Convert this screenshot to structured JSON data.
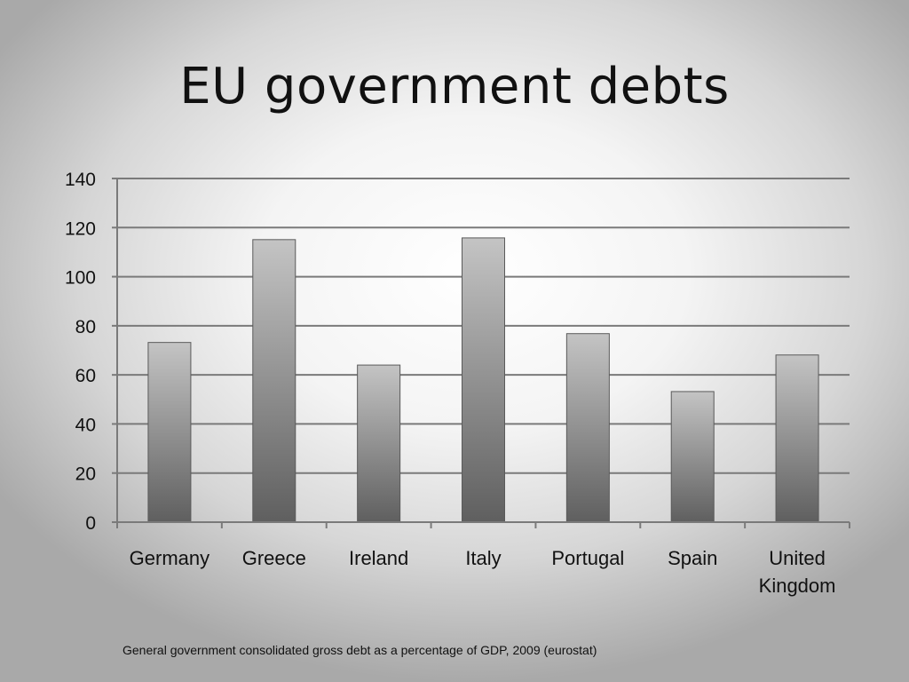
{
  "slide": {
    "title": "EU government debts",
    "caption": "General government consolidated gross debt as a percentage of GDP, 2009 (eurostat)"
  },
  "chart_data": {
    "type": "bar",
    "title": "",
    "xlabel": "",
    "ylabel": "",
    "categories": [
      "Germany",
      "Greece",
      "Ireland",
      "Italy",
      "Portugal",
      "Spain",
      "United Kingdom"
    ],
    "category_lines": [
      [
        "Germany"
      ],
      [
        "Greece"
      ],
      [
        "Ireland"
      ],
      [
        "Italy"
      ],
      [
        "Portugal"
      ],
      [
        "Spain"
      ],
      [
        "United",
        "Kingdom"
      ]
    ],
    "values": [
      73.2,
      115.1,
      64.0,
      115.8,
      76.8,
      53.2,
      68.1
    ],
    "ylim": [
      0,
      140
    ],
    "yticks": [
      0,
      20,
      40,
      60,
      80,
      100,
      120,
      140
    ],
    "grid": true,
    "legend": "none",
    "bar_gradient": [
      "#c4c4c4",
      "#5f5f5f"
    ],
    "grid_color": "#7a7a7a"
  }
}
